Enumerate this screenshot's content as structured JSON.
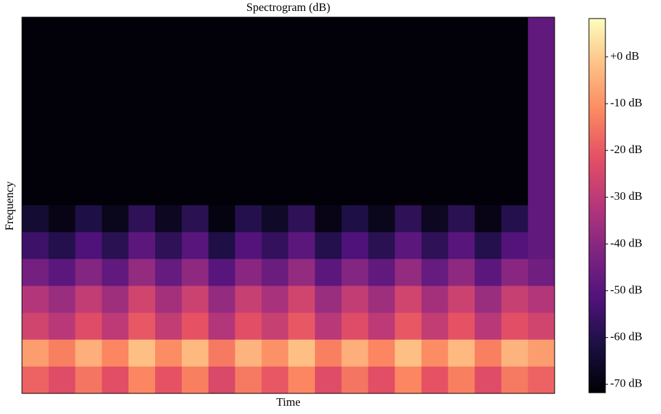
{
  "chart_data": {
    "type": "heatmap",
    "title": "Spectrogram (dB)",
    "xlabel": "Time",
    "ylabel": "Frequency",
    "colormap": "magma",
    "clim": [
      -71.8,
      8.2
    ],
    "cticks": [
      {
        "value": 0,
        "label": "+0 dB"
      },
      {
        "value": -10,
        "label": "-10 dB"
      },
      {
        "value": -20,
        "label": "-20 dB"
      },
      {
        "value": -30,
        "label": "-30 dB"
      },
      {
        "value": -40,
        "label": "-40 dB"
      },
      {
        "value": -50,
        "label": "-50 dB"
      },
      {
        "value": -60,
        "label": "-60 dB"
      },
      {
        "value": -70,
        "label": "-70 dB"
      }
    ],
    "z": [
      [
        -71,
        -71,
        -71,
        -71,
        -71,
        -71,
        -71,
        -71,
        -71,
        -71,
        -71,
        -71,
        -71,
        -71,
        -71,
        -71,
        -71,
        -71,
        -71,
        -48
      ],
      [
        -71,
        -71,
        -71,
        -71,
        -71,
        -71,
        -71,
        -71,
        -71,
        -71,
        -71,
        -71,
        -71,
        -71,
        -71,
        -71,
        -71,
        -71,
        -71,
        -48
      ],
      [
        -71,
        -71,
        -71,
        -71,
        -71,
        -71,
        -71,
        -71,
        -71,
        -71,
        -71,
        -71,
        -71,
        -71,
        -71,
        -71,
        -71,
        -71,
        -71,
        -48
      ],
      [
        -71,
        -71,
        -71,
        -71,
        -71,
        -71,
        -71,
        -71,
        -71,
        -71,
        -71,
        -71,
        -71,
        -71,
        -71,
        -71,
        -71,
        -71,
        -71,
        -48
      ],
      [
        -71,
        -71,
        -71,
        -71,
        -71,
        -71,
        -71,
        -71,
        -71,
        -71,
        -71,
        -71,
        -71,
        -71,
        -71,
        -71,
        -71,
        -71,
        -71,
        -48
      ],
      [
        -71,
        -71,
        -71,
        -71,
        -71,
        -71,
        -71,
        -71,
        -71,
        -71,
        -71,
        -71,
        -71,
        -71,
        -71,
        -71,
        -71,
        -71,
        -71,
        -48
      ],
      [
        -71,
        -71,
        -71,
        -71,
        -71,
        -71,
        -71,
        -71,
        -71,
        -71,
        -71,
        -71,
        -71,
        -71,
        -71,
        -71,
        -71,
        -71,
        -71,
        -48
      ],
      [
        -64,
        -69,
        -61,
        -68,
        -58,
        -67,
        -59,
        -70,
        -60,
        -66,
        -58,
        -69,
        -61,
        -68,
        -58,
        -67,
        -59,
        -69,
        -60,
        -48
      ],
      [
        -55,
        -60,
        -52,
        -59,
        -49,
        -58,
        -50,
        -61,
        -51,
        -57,
        -49,
        -60,
        -52,
        -59,
        -49,
        -58,
        -50,
        -60,
        -51,
        -48
      ],
      [
        -44,
        -49,
        -41,
        -48,
        -38,
        -47,
        -39,
        -50,
        -40,
        -46,
        -38,
        -49,
        -41,
        -48,
        -38,
        -47,
        -39,
        -49,
        -40,
        -45
      ],
      [
        -32,
        -37,
        -29,
        -36,
        -26,
        -35,
        -27,
        -38,
        -28,
        -34,
        -26,
        -37,
        -29,
        -36,
        -26,
        -35,
        -27,
        -37,
        -28,
        -32
      ],
      [
        -26,
        -31,
        -23,
        -30,
        -20,
        -29,
        -21,
        -32,
        -22,
        -28,
        -20,
        -31,
        -23,
        -30,
        -20,
        -29,
        -21,
        -31,
        -22,
        -26
      ],
      [
        -8,
        -13,
        -5,
        -12,
        -2,
        -11,
        -3,
        -14,
        -4,
        -10,
        -2,
        -13,
        -5,
        -12,
        -2,
        -11,
        -3,
        -13,
        -4,
        -8
      ],
      [
        -18,
        -23,
        -15,
        -22,
        -12,
        -21,
        -13,
        -24,
        -14,
        -20,
        -12,
        -23,
        -15,
        -22,
        -12,
        -21,
        -13,
        -23,
        -14,
        -18
      ]
    ]
  }
}
